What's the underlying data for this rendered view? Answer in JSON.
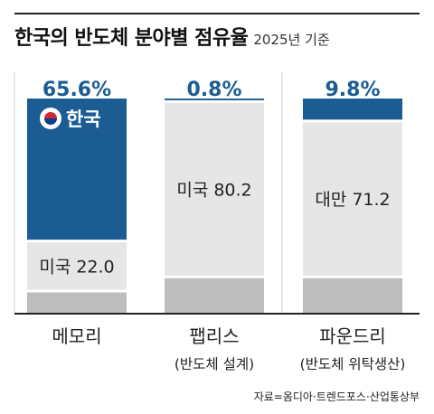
{
  "header": {
    "title": "한국의 반도체 분야별 점유율",
    "subtitle": "2025년 기준"
  },
  "chart_data": {
    "type": "bar",
    "stacked": true,
    "ylim": [
      0,
      100
    ],
    "colors": {
      "korea": "#1b5c93",
      "segment": "#e6e6e6",
      "rest": "#bdbdbd",
      "axis": "#222222"
    },
    "categories": [
      {
        "label": "메모리",
        "sublabel": ""
      },
      {
        "label": "팹리스",
        "sublabel": "(반도체 설계)"
      },
      {
        "label": "파운드리",
        "sublabel": "(반도체 위탁생산)"
      }
    ],
    "korea_share": [
      "65.6%",
      "0.8%",
      "9.8%"
    ],
    "korea_values": [
      65.6,
      0.8,
      9.8
    ],
    "korea_label": "한국",
    "korea_flag_icon": "taegukgi-flag-icon",
    "segments": [
      {
        "label": "미국 22.0",
        "value": 22.0
      },
      {
        "label": "미국 80.2",
        "value": 80.2
      },
      {
        "label": "대만 71.2",
        "value": 71.2
      }
    ]
  },
  "source": "자료=옴디아·트렌드포스·산업통상부"
}
